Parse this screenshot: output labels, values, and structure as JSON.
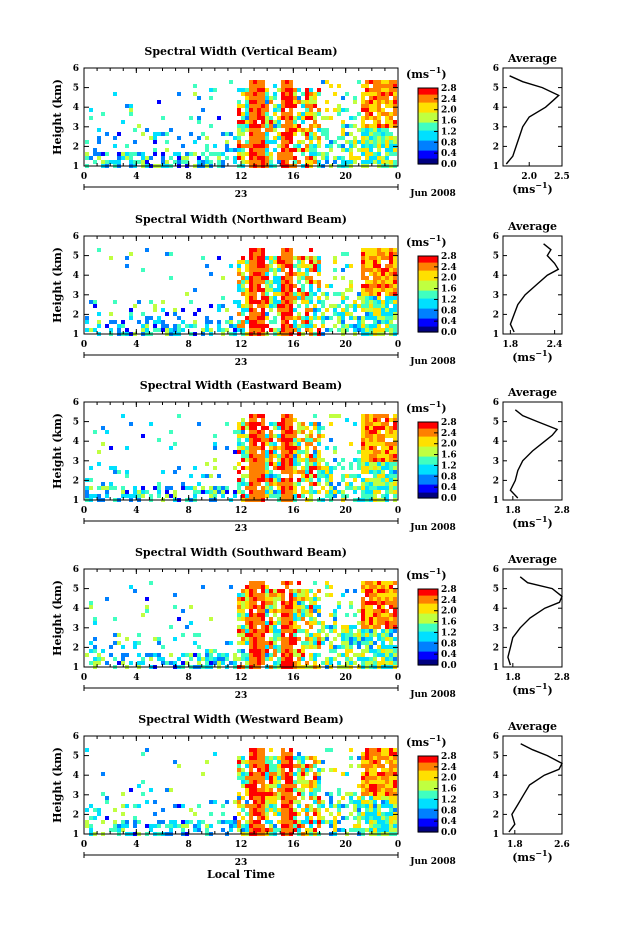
{
  "x_label": "Local Time",
  "date_label": "Jun 2008",
  "day_label": "23",
  "y_label": "Height (km)",
  "unit_label": "(ms",
  "unit_sup": "−1",
  "avg_title": "Average",
  "chart_data": [
    {
      "type": "heatmap",
      "title": "Spectral Width (Vertical Beam)",
      "ylabel": "Height (km)",
      "xlabel": "",
      "x_ticks": [
        "0",
        "4",
        "8",
        "12",
        "16",
        "20",
        "0"
      ],
      "x_range_hours": [
        0,
        24
      ],
      "y_ticks": [
        "1",
        "2",
        "3",
        "4",
        "5",
        "6"
      ],
      "ylim": [
        1,
        6
      ],
      "colorbar_ticks": [
        "0.0",
        "0.4",
        "0.8",
        "1.2",
        "1.6",
        "2.0",
        "2.4",
        "2.8"
      ],
      "colorbar_range": [
        0.0,
        2.8
      ],
      "colormap": [
        "#000080",
        "#0000ff",
        "#0080ff",
        "#00e0ff",
        "#40ffc0",
        "#c0ff40",
        "#ffe000",
        "#ff8000",
        "#ff0000"
      ],
      "average": {
        "title": "Average",
        "xticks": [
          "2.0",
          "2.5"
        ],
        "xlim": [
          1.6,
          2.5
        ],
        "height_km": [
          1.1,
          1.5,
          2.0,
          2.5,
          3.0,
          3.5,
          4.0,
          4.3,
          4.6,
          5.0,
          5.3,
          5.6
        ],
        "width_ms": [
          1.65,
          1.75,
          1.8,
          1.85,
          1.9,
          2.0,
          2.25,
          2.35,
          2.45,
          2.2,
          1.9,
          1.7
        ]
      }
    },
    {
      "type": "heatmap",
      "title": "Spectral Width (Northward Beam)",
      "ylabel": "Height (km)",
      "xlabel": "",
      "x_ticks": [
        "0",
        "4",
        "8",
        "12",
        "16",
        "20",
        "0"
      ],
      "x_range_hours": [
        0,
        24
      ],
      "y_ticks": [
        "1",
        "2",
        "3",
        "4",
        "5",
        "6"
      ],
      "ylim": [
        1,
        6
      ],
      "colorbar_ticks": [
        "0.0",
        "0.4",
        "0.8",
        "1.2",
        "1.6",
        "2.0",
        "2.4",
        "2.8"
      ],
      "colorbar_range": [
        0.0,
        2.8
      ],
      "colormap": [
        "#000080",
        "#0000ff",
        "#0080ff",
        "#00e0ff",
        "#40ffc0",
        "#c0ff40",
        "#ffe000",
        "#ff8000",
        "#ff0000"
      ],
      "average": {
        "title": "Average",
        "xticks": [
          "1.8",
          "2.4"
        ],
        "xlim": [
          1.7,
          2.5
        ],
        "height_km": [
          1.1,
          1.5,
          2.0,
          2.5,
          3.0,
          3.5,
          4.0,
          4.3,
          4.6,
          5.0,
          5.3,
          5.6
        ],
        "width_ms": [
          1.85,
          1.8,
          1.85,
          1.9,
          2.0,
          2.15,
          2.3,
          2.45,
          2.4,
          2.3,
          2.35,
          2.25
        ]
      }
    },
    {
      "type": "heatmap",
      "title": "Spectral Width (Eastward Beam)",
      "ylabel": "Height (km)",
      "xlabel": "",
      "x_ticks": [
        "0",
        "4",
        "8",
        "12",
        "16",
        "20",
        "0"
      ],
      "x_range_hours": [
        0,
        24
      ],
      "y_ticks": [
        "1",
        "2",
        "3",
        "4",
        "5",
        "6"
      ],
      "ylim": [
        1,
        6
      ],
      "colorbar_ticks": [
        "0.0",
        "0.4",
        "0.8",
        "1.2",
        "1.6",
        "2.0",
        "2.4",
        "2.8"
      ],
      "colorbar_range": [
        0.0,
        2.8
      ],
      "colormap": [
        "#000080",
        "#0000ff",
        "#0080ff",
        "#00e0ff",
        "#40ffc0",
        "#c0ff40",
        "#ffe000",
        "#ff8000",
        "#ff0000"
      ],
      "average": {
        "title": "Average",
        "xticks": [
          "1.8",
          "2.8"
        ],
        "xlim": [
          1.6,
          2.8
        ],
        "height_km": [
          1.1,
          1.5,
          2.0,
          2.5,
          3.0,
          3.5,
          4.0,
          4.3,
          4.6,
          5.0,
          5.3,
          5.6
        ],
        "width_ms": [
          1.9,
          1.75,
          1.85,
          1.9,
          2.0,
          2.2,
          2.45,
          2.6,
          2.7,
          2.3,
          2.0,
          1.85
        ]
      }
    },
    {
      "type": "heatmap",
      "title": "Spectral Width (Southward Beam)",
      "ylabel": "Height (km)",
      "xlabel": "",
      "x_ticks": [
        "0",
        "4",
        "8",
        "12",
        "16",
        "20",
        "0"
      ],
      "x_range_hours": [
        0,
        24
      ],
      "y_ticks": [
        "1",
        "2",
        "3",
        "4",
        "5",
        "6"
      ],
      "ylim": [
        1,
        6
      ],
      "colorbar_ticks": [
        "0.0",
        "0.4",
        "0.8",
        "1.2",
        "1.6",
        "2.0",
        "2.4",
        "2.8"
      ],
      "colorbar_range": [
        0.0,
        2.8
      ],
      "colormap": [
        "#000080",
        "#0000ff",
        "#0080ff",
        "#00e0ff",
        "#40ffc0",
        "#c0ff40",
        "#ffe000",
        "#ff8000",
        "#ff0000"
      ],
      "average": {
        "title": "Average",
        "xticks": [
          "1.8",
          "2.8"
        ],
        "xlim": [
          1.6,
          2.8
        ],
        "height_km": [
          1.1,
          1.5,
          2.0,
          2.5,
          3.0,
          3.5,
          4.0,
          4.3,
          4.6,
          5.0,
          5.3,
          5.6
        ],
        "width_ms": [
          1.75,
          1.7,
          1.75,
          1.8,
          1.95,
          2.15,
          2.45,
          2.75,
          2.8,
          2.6,
          2.1,
          1.95
        ]
      }
    },
    {
      "type": "heatmap",
      "title": "Spectral Width (Westward Beam)",
      "ylabel": "Height (km)",
      "xlabel": "Local Time",
      "x_ticks": [
        "0",
        "4",
        "8",
        "12",
        "16",
        "20",
        "0"
      ],
      "x_range_hours": [
        0,
        24
      ],
      "y_ticks": [
        "1",
        "2",
        "3",
        "4",
        "5",
        "6"
      ],
      "ylim": [
        1,
        6
      ],
      "colorbar_ticks": [
        "0.0",
        "0.4",
        "0.8",
        "1.2",
        "1.6",
        "2.0",
        "2.4",
        "2.8"
      ],
      "colorbar_range": [
        0.0,
        2.8
      ],
      "colormap": [
        "#000080",
        "#0000ff",
        "#0080ff",
        "#00e0ff",
        "#40ffc0",
        "#c0ff40",
        "#ffe000",
        "#ff8000",
        "#ff0000"
      ],
      "average": {
        "title": "Average",
        "xticks": [
          "1.8",
          "2.6"
        ],
        "xlim": [
          1.6,
          2.6
        ],
        "height_km": [
          1.1,
          1.5,
          2.0,
          2.5,
          3.0,
          3.5,
          4.0,
          4.3,
          4.6,
          5.0,
          5.3,
          5.6
        ],
        "width_ms": [
          1.7,
          1.8,
          1.75,
          1.85,
          1.95,
          2.05,
          2.3,
          2.55,
          2.6,
          2.35,
          2.1,
          1.9
        ]
      }
    }
  ]
}
